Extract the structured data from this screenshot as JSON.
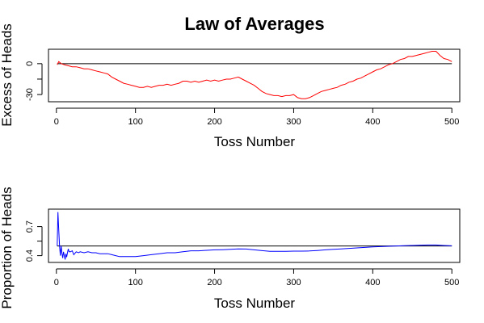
{
  "chart_data": [
    {
      "type": "line",
      "title": "Law of Averages",
      "xlabel": "Toss Number",
      "ylabel": "Excess of Heads",
      "xlim": [
        -10,
        510
      ],
      "ylim": [
        -37,
        14
      ],
      "xticks": [
        0,
        100,
        200,
        300,
        400,
        500
      ],
      "yticks": [
        -30,
        0
      ],
      "reference_line": 0,
      "series": [
        {
          "color": "#ff0000",
          "points": [
            [
              1,
              -1
            ],
            [
              3,
              2
            ],
            [
              6,
              0
            ],
            [
              10,
              -1
            ],
            [
              15,
              -2
            ],
            [
              20,
              -3
            ],
            [
              25,
              -3
            ],
            [
              30,
              -4
            ],
            [
              35,
              -5
            ],
            [
              40,
              -5
            ],
            [
              45,
              -6
            ],
            [
              50,
              -7
            ],
            [
              55,
              -8
            ],
            [
              60,
              -9
            ],
            [
              65,
              -10
            ],
            [
              70,
              -13
            ],
            [
              75,
              -15
            ],
            [
              80,
              -17
            ],
            [
              85,
              -19
            ],
            [
              90,
              -20
            ],
            [
              95,
              -21
            ],
            [
              100,
              -22
            ],
            [
              105,
              -23
            ],
            [
              110,
              -23
            ],
            [
              115,
              -22
            ],
            [
              120,
              -23
            ],
            [
              125,
              -22
            ],
            [
              130,
              -21
            ],
            [
              135,
              -21
            ],
            [
              140,
              -20
            ],
            [
              145,
              -21
            ],
            [
              150,
              -20
            ],
            [
              155,
              -19
            ],
            [
              160,
              -17
            ],
            [
              165,
              -17
            ],
            [
              170,
              -18
            ],
            [
              175,
              -17
            ],
            [
              180,
              -18
            ],
            [
              185,
              -17
            ],
            [
              190,
              -16
            ],
            [
              195,
              -17
            ],
            [
              200,
              -16
            ],
            [
              205,
              -17
            ],
            [
              210,
              -16
            ],
            [
              215,
              -15
            ],
            [
              220,
              -15
            ],
            [
              225,
              -14
            ],
            [
              230,
              -13
            ],
            [
              235,
              -15
            ],
            [
              240,
              -17
            ],
            [
              245,
              -19
            ],
            [
              250,
              -21
            ],
            [
              255,
              -24
            ],
            [
              260,
              -27
            ],
            [
              265,
              -29
            ],
            [
              270,
              -30
            ],
            [
              275,
              -31
            ],
            [
              280,
              -31
            ],
            [
              285,
              -32
            ],
            [
              290,
              -31
            ],
            [
              295,
              -31
            ],
            [
              300,
              -30
            ],
            [
              305,
              -33
            ],
            [
              310,
              -34
            ],
            [
              315,
              -34
            ],
            [
              320,
              -33
            ],
            [
              325,
              -31
            ],
            [
              330,
              -29
            ],
            [
              335,
              -27
            ],
            [
              340,
              -26
            ],
            [
              345,
              -25
            ],
            [
              350,
              -24
            ],
            [
              355,
              -23
            ],
            [
              360,
              -21
            ],
            [
              365,
              -20
            ],
            [
              370,
              -18
            ],
            [
              375,
              -17
            ],
            [
              380,
              -15
            ],
            [
              385,
              -14
            ],
            [
              390,
              -12
            ],
            [
              395,
              -10
            ],
            [
              400,
              -8
            ],
            [
              405,
              -6
            ],
            [
              410,
              -5
            ],
            [
              415,
              -3
            ],
            [
              420,
              -1
            ],
            [
              425,
              0
            ],
            [
              430,
              2
            ],
            [
              435,
              4
            ],
            [
              440,
              5
            ],
            [
              445,
              7
            ],
            [
              450,
              7
            ],
            [
              455,
              8
            ],
            [
              460,
              9
            ],
            [
              465,
              10
            ],
            [
              470,
              11
            ],
            [
              475,
              12
            ],
            [
              480,
              12
            ],
            [
              485,
              8
            ],
            [
              490,
              5
            ],
            [
              495,
              4
            ],
            [
              500,
              2
            ]
          ]
        }
      ]
    },
    {
      "type": "line",
      "title": "",
      "xlabel": "Toss Number",
      "ylabel": "Proportion of Heads",
      "xlim": [
        -10,
        510
      ],
      "ylim": [
        0.33,
        0.88
      ],
      "xticks": [
        0,
        100,
        200,
        300,
        400,
        500
      ],
      "yticks": [
        0.4,
        0.7
      ],
      "reference_line": 0.5,
      "series": [
        {
          "color": "#0000ff",
          "points": [
            [
              1,
              0.5
            ],
            [
              2,
              0.85
            ],
            [
              3,
              0.667
            ],
            [
              4,
              0.5
            ],
            [
              5,
              0.4
            ],
            [
              6,
              0.5
            ],
            [
              7,
              0.43
            ],
            [
              8,
              0.375
            ],
            [
              9,
              0.44
            ],
            [
              10,
              0.4
            ],
            [
              11,
              0.36
            ],
            [
              12,
              0.42
            ],
            [
              13,
              0.385
            ],
            [
              14,
              0.43
            ],
            [
              15,
              0.47
            ],
            [
              16,
              0.44
            ],
            [
              18,
              0.44
            ],
            [
              20,
              0.45
            ],
            [
              22,
              0.41
            ],
            [
              25,
              0.44
            ],
            [
              28,
              0.43
            ],
            [
              30,
              0.44
            ],
            [
              35,
              0.43
            ],
            [
              40,
              0.44
            ],
            [
              45,
              0.43
            ],
            [
              50,
              0.43
            ],
            [
              55,
              0.42
            ],
            [
              60,
              0.42
            ],
            [
              65,
              0.42
            ],
            [
              70,
              0.41
            ],
            [
              75,
              0.4
            ],
            [
              80,
              0.39
            ],
            [
              85,
              0.39
            ],
            [
              90,
              0.39
            ],
            [
              95,
              0.39
            ],
            [
              100,
              0.39
            ],
            [
              110,
              0.4
            ],
            [
              120,
              0.41
            ],
            [
              130,
              0.42
            ],
            [
              140,
              0.43
            ],
            [
              150,
              0.43
            ],
            [
              160,
              0.44
            ],
            [
              170,
              0.45
            ],
            [
              180,
              0.45
            ],
            [
              190,
              0.455
            ],
            [
              200,
              0.46
            ],
            [
              210,
              0.462
            ],
            [
              220,
              0.465
            ],
            [
              230,
              0.47
            ],
            [
              240,
              0.468
            ],
            [
              250,
              0.46
            ],
            [
              260,
              0.452
            ],
            [
              270,
              0.445
            ],
            [
              280,
              0.445
            ],
            [
              290,
              0.445
            ],
            [
              300,
              0.447
            ],
            [
              310,
              0.447
            ],
            [
              320,
              0.448
            ],
            [
              330,
              0.453
            ],
            [
              340,
              0.46
            ],
            [
              350,
              0.466
            ],
            [
              360,
              0.47
            ],
            [
              370,
              0.475
            ],
            [
              380,
              0.48
            ],
            [
              390,
              0.485
            ],
            [
              400,
              0.49
            ],
            [
              410,
              0.493
            ],
            [
              420,
              0.497
            ],
            [
              430,
              0.5
            ],
            [
              440,
              0.503
            ],
            [
              450,
              0.505
            ],
            [
              460,
              0.508
            ],
            [
              470,
              0.51
            ],
            [
              480,
              0.51
            ],
            [
              490,
              0.505
            ],
            [
              500,
              0.502
            ]
          ]
        }
      ]
    }
  ]
}
